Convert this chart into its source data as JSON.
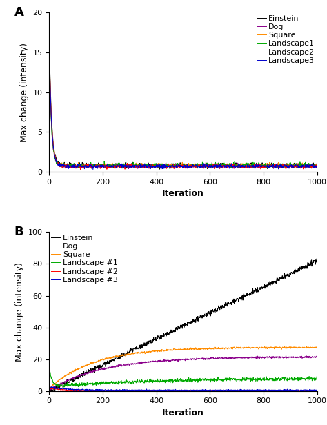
{
  "panel_A": {
    "title": "A",
    "ylabel": "Max change (intensity)",
    "xlabel": "Iteration",
    "xlim": [
      0,
      1000
    ],
    "ylim": [
      0,
      20
    ],
    "yticks": [
      0,
      5,
      10,
      15,
      20
    ],
    "xticks": [
      0,
      200,
      400,
      600,
      800,
      1000
    ],
    "legend_labels": [
      "Einstein",
      "Dog",
      "Square",
      "Landscape1",
      "Landscape2",
      "Landscape3"
    ],
    "legend_colors": [
      "#000000",
      "#8b008b",
      "#ff8c00",
      "#00aa00",
      "#ff0000",
      "#0000cc"
    ]
  },
  "panel_B": {
    "title": "B",
    "ylabel": "Max change (intensity)",
    "xlabel": "Iteration",
    "xlim": [
      0,
      1000
    ],
    "ylim": [
      0,
      100
    ],
    "yticks": [
      0,
      20,
      40,
      60,
      80,
      100
    ],
    "xticks": [
      0,
      200,
      400,
      600,
      800,
      1000
    ],
    "legend_labels": [
      "Einstein",
      "Dog",
      "Square",
      "Landscape #1",
      "Landscape #2",
      "Landscape #3"
    ],
    "legend_colors": [
      "#000000",
      "#8b008b",
      "#ff8c00",
      "#00aa00",
      "#ff0000",
      "#0000cc"
    ]
  },
  "figure_bg": "#ffffff",
  "axis_label_fontsize": 9,
  "tick_fontsize": 8,
  "legend_fontsize": 8,
  "panel_label_fontsize": 13
}
